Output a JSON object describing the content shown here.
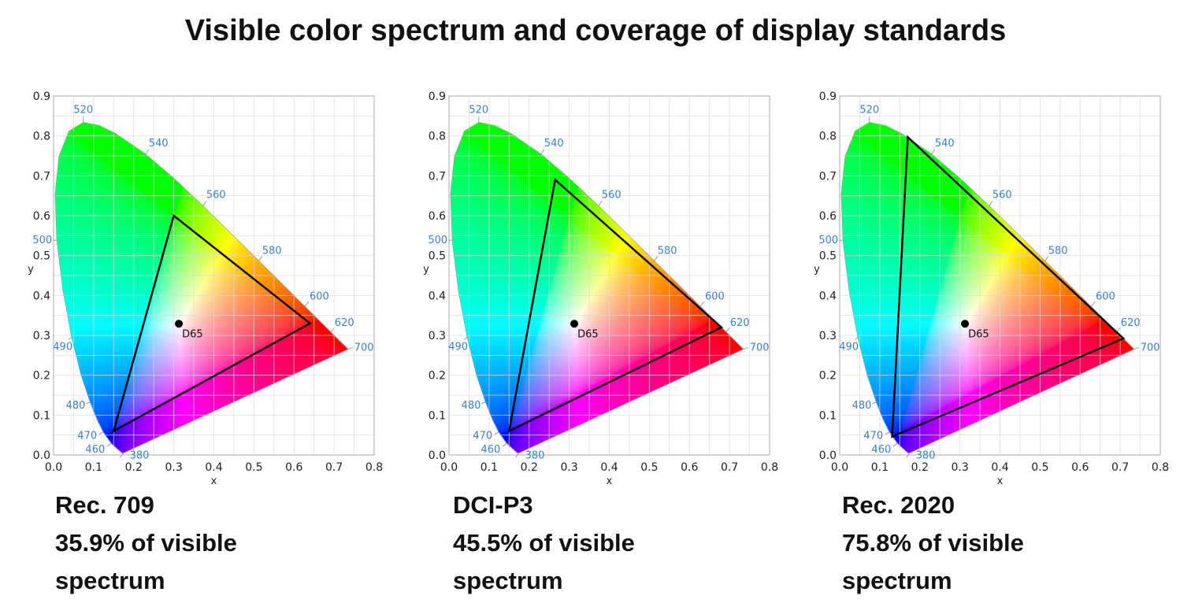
{
  "title": "Visible color spectrum and coverage of display standards",
  "chart_data": [
    {
      "type": "scatter",
      "subtype": "CIE 1931 chromaticity diagram with gamut triangle",
      "xlabel": "x",
      "ylabel": "y",
      "xlim": [
        0,
        0.8
      ],
      "ylim": [
        0,
        0.9
      ],
      "xticks": [
        "0.0",
        "0.1",
        "0.2",
        "0.3",
        "0.4",
        "0.5",
        "0.6",
        "0.7",
        "0.8"
      ],
      "yticks": [
        "0.0",
        "0.1",
        "0.2",
        "0.3",
        "0.4",
        "0.5",
        "0.6",
        "0.7",
        "0.8",
        "0.9"
      ],
      "grid": true,
      "gamut": {
        "red": [
          0.64,
          0.33
        ],
        "green": [
          0.3,
          0.6
        ],
        "blue": [
          0.15,
          0.06
        ]
      },
      "white_point": {
        "label": "D65",
        "xy": [
          0.3127,
          0.329
        ]
      },
      "caption": [
        "Rec. 709",
        "35.9% of visible",
        "spectrum"
      ],
      "coverage_percent": 35.9
    },
    {
      "type": "scatter",
      "subtype": "CIE 1931 chromaticity diagram with gamut triangle",
      "xlabel": "x",
      "ylabel": "y",
      "xlim": [
        0,
        0.8
      ],
      "ylim": [
        0,
        0.9
      ],
      "xticks": [
        "0.0",
        "0.1",
        "0.2",
        "0.3",
        "0.4",
        "0.5",
        "0.6",
        "0.7",
        "0.8"
      ],
      "yticks": [
        "0.0",
        "0.1",
        "0.2",
        "0.3",
        "0.4",
        "0.5",
        "0.6",
        "0.7",
        "0.8",
        "0.9"
      ],
      "grid": true,
      "gamut": {
        "red": [
          0.68,
          0.32
        ],
        "green": [
          0.265,
          0.69
        ],
        "blue": [
          0.15,
          0.06
        ]
      },
      "white_point": {
        "label": "D65",
        "xy": [
          0.3127,
          0.329
        ]
      },
      "caption": [
        "DCI-P3",
        "45.5% of visible",
        "spectrum"
      ],
      "coverage_percent": 45.5
    },
    {
      "type": "scatter",
      "subtype": "CIE 1931 chromaticity diagram with gamut triangle",
      "xlabel": "x",
      "ylabel": "y",
      "xlim": [
        0,
        0.8
      ],
      "ylim": [
        0,
        0.9
      ],
      "xticks": [
        "0.0",
        "0.1",
        "0.2",
        "0.3",
        "0.4",
        "0.5",
        "0.6",
        "0.7",
        "0.8"
      ],
      "yticks": [
        "0.0",
        "0.1",
        "0.2",
        "0.3",
        "0.4",
        "0.5",
        "0.6",
        "0.7",
        "0.8",
        "0.9"
      ],
      "grid": true,
      "gamut": {
        "red": [
          0.708,
          0.292
        ],
        "green": [
          0.17,
          0.797
        ],
        "blue": [
          0.131,
          0.046
        ]
      },
      "white_point": {
        "label": "D65",
        "xy": [
          0.3127,
          0.329
        ]
      },
      "caption": [
        "Rec. 2020",
        "75.8% of visible",
        "spectrum"
      ],
      "coverage_percent": 75.8
    }
  ],
  "spectral_locus": [
    [
      380,
      0.1741,
      0.005
    ],
    [
      420,
      0.1714,
      0.0051
    ],
    [
      440,
      0.1644,
      0.0109
    ],
    [
      450,
      0.1566,
      0.0177
    ],
    [
      460,
      0.144,
      0.0297
    ],
    [
      470,
      0.1241,
      0.0578
    ],
    [
      475,
      0.1096,
      0.0868
    ],
    [
      480,
      0.0913,
      0.1327
    ],
    [
      485,
      0.0687,
      0.2007
    ],
    [
      490,
      0.0454,
      0.295
    ],
    [
      495,
      0.0235,
      0.4127
    ],
    [
      500,
      0.0082,
      0.5384
    ],
    [
      505,
      0.0039,
      0.6548
    ],
    [
      510,
      0.0139,
      0.7502
    ],
    [
      515,
      0.0389,
      0.812
    ],
    [
      520,
      0.0743,
      0.8338
    ],
    [
      525,
      0.1142,
      0.8262
    ],
    [
      530,
      0.1547,
      0.8059
    ],
    [
      540,
      0.2296,
      0.7543
    ],
    [
      550,
      0.3016,
      0.6923
    ],
    [
      560,
      0.3731,
      0.6245
    ],
    [
      570,
      0.4441,
      0.5547
    ],
    [
      580,
      0.5125,
      0.4866
    ],
    [
      590,
      0.5752,
      0.4242
    ],
    [
      600,
      0.627,
      0.3725
    ],
    [
      610,
      0.6658,
      0.334
    ],
    [
      620,
      0.6915,
      0.3083
    ],
    [
      640,
      0.719,
      0.2809
    ],
    [
      700,
      0.7347,
      0.2653
    ]
  ],
  "wavelength_labels": [
    "380",
    "460",
    "470",
    "480",
    "490",
    "500",
    "520",
    "540",
    "560",
    "580",
    "600",
    "620",
    "700"
  ],
  "colors": {
    "wavelength_label": "#3a7fc8",
    "triangle": "#000000",
    "grid": "#d8d8d8",
    "text": "#111111"
  }
}
